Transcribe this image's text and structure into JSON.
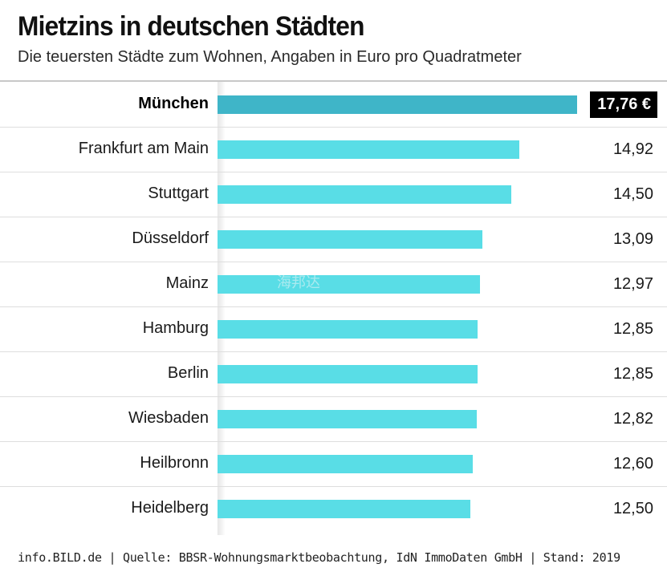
{
  "chart_data": {
    "type": "bar",
    "orientation": "horizontal",
    "title": "Mietzins in deutschen Städten",
    "subtitle": "Die teuersten Städte zum Wohnen, Angaben in Euro pro Quadratmeter",
    "categories": [
      "München",
      "Frankfurt am Main",
      "Stuttgart",
      "Düsseldorf",
      "Mainz",
      "Hamburg",
      "Berlin",
      "Wiesbaden",
      "Heilbronn",
      "Heidelberg"
    ],
    "values": [
      17.76,
      14.92,
      14.5,
      13.09,
      12.97,
      12.85,
      12.85,
      12.82,
      12.6,
      12.5
    ],
    "value_labels": [
      "17,76 €",
      "14,92",
      "14,50",
      "13,09",
      "12,97",
      "12,85",
      "12,85",
      "12,82",
      "12,60",
      "12,50"
    ],
    "highlight_index": 0,
    "xlim": [
      0,
      17.76
    ],
    "unit": "Euro pro Quadratmeter",
    "source": "info.BILD.de | Quelle: BBSR-Wohnungsmarktbeobachtung, IdN ImmoDaten GmbH | Stand: 2019"
  },
  "watermark": "海邦达",
  "colors": {
    "bar": "#59dde6",
    "bar_highlight": "#3fb5c8",
    "highlight_label_bg": "#000000"
  }
}
